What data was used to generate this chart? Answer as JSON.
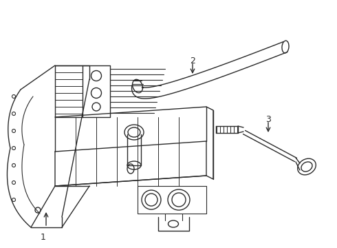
{
  "bg_color": "#ffffff",
  "line_color": "#2a2a2a",
  "line_width": 1.0,
  "label_1": "1",
  "label_2": "2",
  "label_3": "3",
  "fig_width": 4.9,
  "fig_height": 3.6,
  "dpi": 100
}
